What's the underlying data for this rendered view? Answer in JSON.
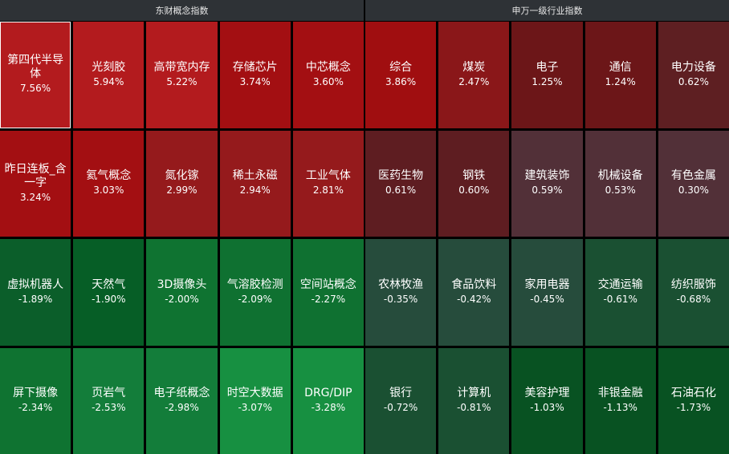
{
  "left": {
    "title": "东财概念指数",
    "tiles": [
      {
        "name": "第四代半导体",
        "pct": "7.56%",
        "color": "#b31b1e",
        "selected": true
      },
      {
        "name": "光刻胶",
        "pct": "5.94%",
        "color": "#b31b1e"
      },
      {
        "name": "高带宽内存",
        "pct": "5.22%",
        "color": "#b31b1e"
      },
      {
        "name": "存储芯片",
        "pct": "3.74%",
        "color": "#a30f12"
      },
      {
        "name": "中芯概念",
        "pct": "3.60%",
        "color": "#a30f12"
      },
      {
        "name": "昨日连板_含一字",
        "pct": "3.24%",
        "color": "#a30f12"
      },
      {
        "name": "氦气概念",
        "pct": "3.03%",
        "color": "#a30f12"
      },
      {
        "name": "氮化镓",
        "pct": "2.99%",
        "color": "#951a1c"
      },
      {
        "name": "稀土永磁",
        "pct": "2.94%",
        "color": "#951a1c"
      },
      {
        "name": "工业气体",
        "pct": "2.81%",
        "color": "#951a1c"
      },
      {
        "name": "虚拟机器人",
        "pct": "-1.89%",
        "color": "#0b5e2a"
      },
      {
        "name": "天然气",
        "pct": "-1.90%",
        "color": "#065e26"
      },
      {
        "name": "3D摄像头",
        "pct": "-2.00%",
        "color": "#0f7331"
      },
      {
        "name": "气溶胶检测",
        "pct": "-2.09%",
        "color": "#0f7131"
      },
      {
        "name": "空间站概念",
        "pct": "-2.27%",
        "color": "#0f7131"
      },
      {
        "name": "屏下摄像",
        "pct": "-2.34%",
        "color": "#0f7331"
      },
      {
        "name": "页岩气",
        "pct": "-2.53%",
        "color": "#137d3a"
      },
      {
        "name": "电子纸概念",
        "pct": "-2.98%",
        "color": "#137d3a"
      },
      {
        "name": "时空大数据",
        "pct": "-3.07%",
        "color": "#179041"
      },
      {
        "name": "DRG/DIP",
        "pct": "-3.28%",
        "color": "#179041"
      }
    ]
  },
  "right": {
    "title": "申万一级行业指数",
    "tiles": [
      {
        "name": "综合",
        "pct": "3.86%",
        "color": "#a00e10"
      },
      {
        "name": "煤炭",
        "pct": "2.47%",
        "color": "#8a1719"
      },
      {
        "name": "电子",
        "pct": "1.25%",
        "color": "#6c1618"
      },
      {
        "name": "通信",
        "pct": "1.24%",
        "color": "#6c1618"
      },
      {
        "name": "电力设备",
        "pct": "0.62%",
        "color": "#5e1f22"
      },
      {
        "name": "医药生物",
        "pct": "0.61%",
        "color": "#5e1d21"
      },
      {
        "name": "钢铁",
        "pct": "0.60%",
        "color": "#5e1d21"
      },
      {
        "name": "建筑装饰",
        "pct": "0.59%",
        "color": "#523038"
      },
      {
        "name": "机械设备",
        "pct": "0.53%",
        "color": "#523038"
      },
      {
        "name": "有色金属",
        "pct": "0.30%",
        "color": "#523038"
      },
      {
        "name": "农林牧渔",
        "pct": "-0.35%",
        "color": "#264c3c"
      },
      {
        "name": "食品饮料",
        "pct": "-0.42%",
        "color": "#264c3c"
      },
      {
        "name": "家用电器",
        "pct": "-0.45%",
        "color": "#264c3c"
      },
      {
        "name": "交通运输",
        "pct": "-0.61%",
        "color": "#1a5032"
      },
      {
        "name": "纺织服饰",
        "pct": "-0.68%",
        "color": "#1a5032"
      },
      {
        "name": "银行",
        "pct": "-0.72%",
        "color": "#1a5032"
      },
      {
        "name": "计算机",
        "pct": "-0.81%",
        "color": "#1a5032"
      },
      {
        "name": "美容护理",
        "pct": "-1.03%",
        "color": "#085222"
      },
      {
        "name": "非银金融",
        "pct": "-1.13%",
        "color": "#085222"
      },
      {
        "name": "石油石化",
        "pct": "-1.73%",
        "color": "#085222"
      }
    ]
  }
}
